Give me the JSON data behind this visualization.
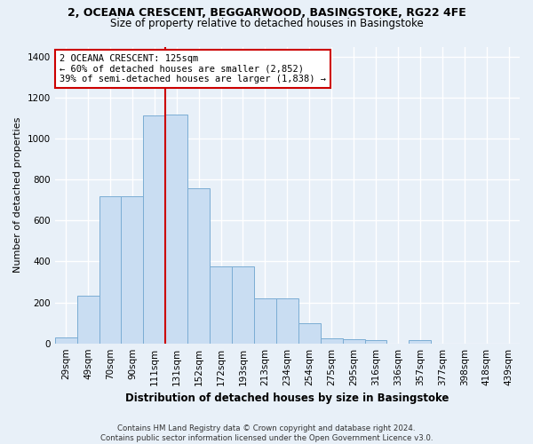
{
  "title_line1": "2, OCEANA CRESCENT, BEGGARWOOD, BASINGSTOKE, RG22 4FE",
  "title_line2": "Size of property relative to detached houses in Basingstoke",
  "xlabel": "Distribution of detached houses by size in Basingstoke",
  "ylabel": "Number of detached properties",
  "categories": [
    "29sqm",
    "49sqm",
    "70sqm",
    "90sqm",
    "111sqm",
    "131sqm",
    "152sqm",
    "172sqm",
    "193sqm",
    "213sqm",
    "234sqm",
    "254sqm",
    "275sqm",
    "295sqm",
    "316sqm",
    "336sqm",
    "357sqm",
    "377sqm",
    "398sqm",
    "418sqm",
    "439sqm"
  ],
  "values": [
    30,
    235,
    720,
    720,
    1115,
    1120,
    760,
    375,
    375,
    220,
    220,
    100,
    25,
    20,
    15,
    0,
    15,
    0,
    0,
    0,
    0
  ],
  "bar_color": "#c9ddf2",
  "bar_edge_color": "#7badd4",
  "vline_color": "#cc0000",
  "vline_index": 4.5,
  "annotation_text": "2 OCEANA CRESCENT: 125sqm\n← 60% of detached houses are smaller (2,852)\n39% of semi-detached houses are larger (1,838) →",
  "annotation_box_color": "#ffffff",
  "annotation_box_edge": "#cc0000",
  "ylim": [
    0,
    1450
  ],
  "yticks": [
    0,
    200,
    400,
    600,
    800,
    1000,
    1200,
    1400
  ],
  "footer": "Contains HM Land Registry data © Crown copyright and database right 2024.\nContains public sector information licensed under the Open Government Licence v3.0.",
  "bg_color": "#e8f0f8",
  "grid_color": "#ffffff",
  "title_fontsize": 9,
  "subtitle_fontsize": 8.5,
  "xlabel_fontsize": 8.5,
  "ylabel_fontsize": 8,
  "tick_fontsize": 7.5
}
